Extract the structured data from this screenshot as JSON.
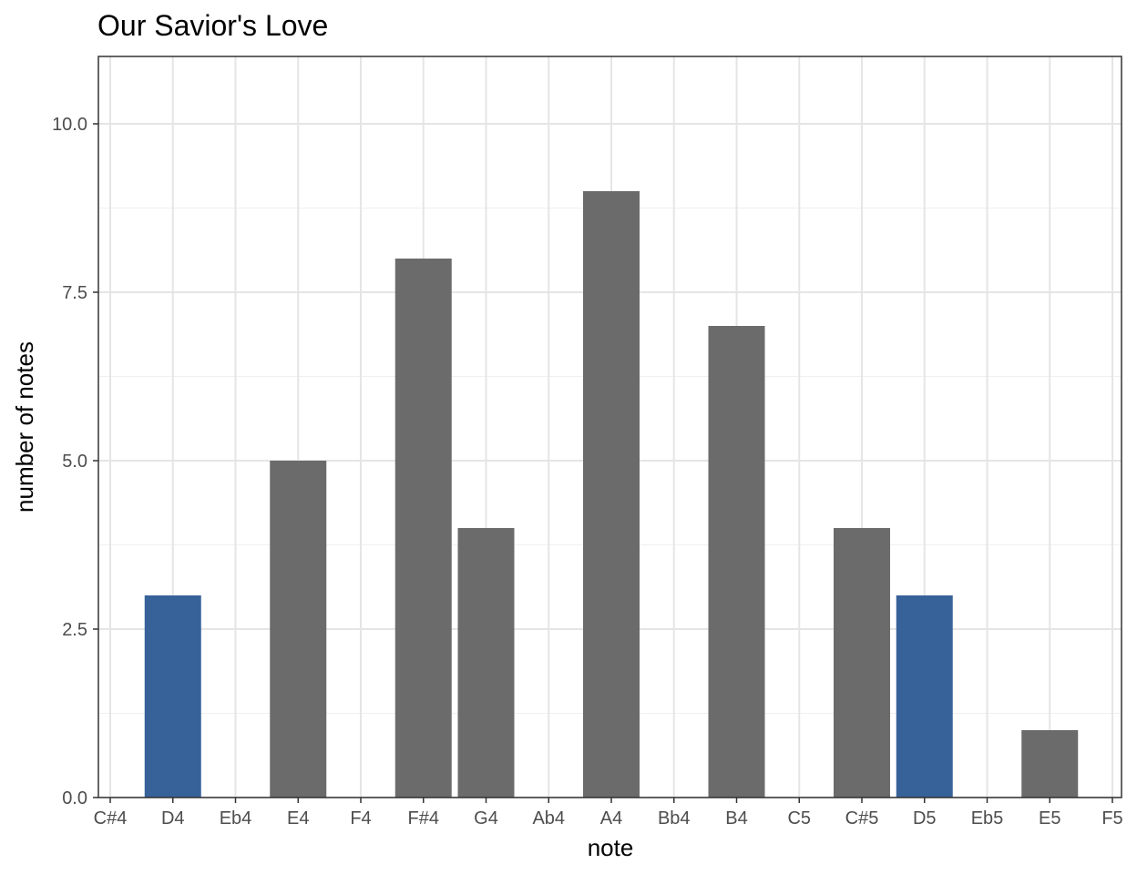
{
  "chart_data": {
    "type": "bar",
    "title": "Our Savior's Love",
    "xlabel": "note",
    "ylabel": "number of notes",
    "categories": [
      "C#4",
      "D4",
      "Eb4",
      "E4",
      "F4",
      "F#4",
      "G4",
      "Ab4",
      "A4",
      "Bb4",
      "B4",
      "C5",
      "C#5",
      "D5",
      "Eb5",
      "E5",
      "F5"
    ],
    "values": [
      0,
      3,
      0,
      5,
      0,
      8,
      4,
      0,
      9,
      0,
      7,
      0,
      4,
      3,
      0,
      1,
      0
    ],
    "highlighted": [
      false,
      true,
      false,
      false,
      false,
      false,
      false,
      false,
      false,
      false,
      false,
      false,
      false,
      true,
      false,
      false,
      false
    ],
    "ylim": [
      0,
      11
    ],
    "yticks": [
      0,
      2.5,
      5,
      7.5,
      10
    ],
    "ytick_labels": [
      "0.0",
      "2.5",
      "5.0",
      "7.5",
      "10.0"
    ],
    "grid": true,
    "legend": "none",
    "colors": {
      "bar": "#6b6b6b",
      "highlight": "#376299"
    }
  }
}
